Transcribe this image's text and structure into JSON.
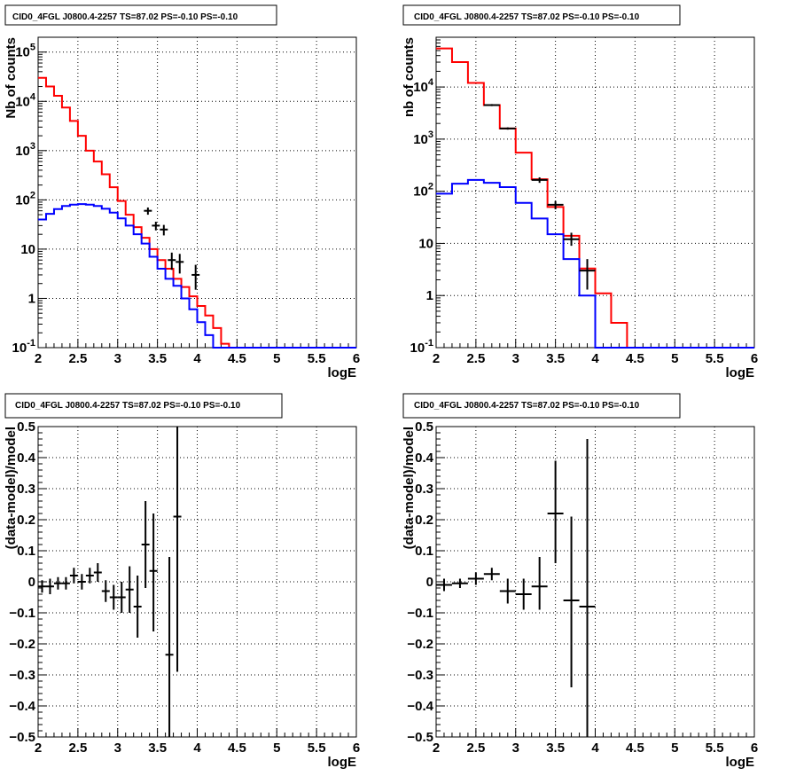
{
  "chart_data": [
    {
      "type": "line",
      "title": "CID0_4FGL J0800.4-2257 TS=87.02 PS=-0.10 PS=-0.10",
      "xlabel": "logE",
      "ylabel": "Nb of counts",
      "xlim": [
        2,
        6
      ],
      "ylim": [
        0.1,
        200000
      ],
      "yscale": "log",
      "grid": true,
      "x_ticks": [
        "2",
        "2.5",
        "3",
        "3.5",
        "4",
        "4.5",
        "5",
        "5.5",
        "6"
      ],
      "y_ticks": [
        {
          "value": 0.1,
          "base": "10",
          "exp": "-1"
        },
        {
          "value": 1,
          "text": "1"
        },
        {
          "value": 10,
          "text": "10"
        },
        {
          "value": 100,
          "base": "10",
          "exp": "2"
        },
        {
          "value": 1000,
          "base": "10",
          "exp": "3"
        },
        {
          "value": 10000,
          "base": "10",
          "exp": "4"
        },
        {
          "value": 100000,
          "base": "10",
          "exp": "5"
        }
      ],
      "series": [
        {
          "color": "#ff0000",
          "edges": [
            2.0,
            2.1,
            2.2,
            2.3,
            2.4,
            2.5,
            2.6,
            2.7,
            2.8,
            2.9,
            3.0,
            3.1,
            3.2,
            3.3,
            3.4,
            3.5,
            3.6,
            3.7,
            3.8,
            3.9,
            4.0,
            4.1,
            4.2,
            4.3,
            4.4,
            6.0
          ],
          "values": [
            30000,
            20000,
            13000,
            7500,
            4000,
            2000,
            1000,
            600,
            330,
            180,
            95,
            50,
            28,
            17,
            10,
            6,
            4,
            2.5,
            1.7,
            1.1,
            0.7,
            0.45,
            0.25,
            0.12,
            0.1
          ]
        },
        {
          "color": "#0000ff",
          "edges": [
            2.0,
            2.1,
            2.2,
            2.3,
            2.4,
            2.5,
            2.6,
            2.7,
            2.8,
            2.9,
            3.0,
            3.1,
            3.2,
            3.3,
            3.4,
            3.5,
            3.6,
            3.7,
            3.8,
            3.9,
            4.0,
            4.1,
            4.2,
            4.3,
            4.4,
            6.0
          ],
          "values": [
            40,
            52,
            65,
            75,
            80,
            82,
            80,
            75,
            66,
            55,
            42,
            30,
            20,
            13,
            7,
            4,
            2.5,
            1.8,
            1.0,
            0.6,
            0.33,
            0.18,
            0.1,
            0.1,
            0.1
          ]
        }
      ],
      "points": [
        {
          "x": 3.38,
          "y": 60,
          "xerr": 0.05,
          "ylo": 50,
          "yhi": 70
        },
        {
          "x": 3.48,
          "y": 30,
          "xerr": 0.05,
          "ylo": 24,
          "yhi": 36
        },
        {
          "x": 3.58,
          "y": 25,
          "xerr": 0.05,
          "ylo": 19,
          "yhi": 31
        },
        {
          "x": 3.68,
          "y": 6,
          "xerr": 0.05,
          "ylo": 3.8,
          "yhi": 8.5
        },
        {
          "x": 3.78,
          "y": 5.5,
          "xerr": 0.05,
          "ylo": 3.2,
          "yhi": 8
        },
        {
          "x": 3.98,
          "y": 3,
          "xerr": 0.05,
          "ylo": 1.5,
          "yhi": 4.8
        }
      ]
    },
    {
      "type": "line",
      "title": "CID0_4FGL J0800.4-2257 TS=87.02 PS=-0.10 PS=-0.10",
      "xlabel": "logE",
      "ylabel": "nb of counts",
      "xlim": [
        2,
        6
      ],
      "ylim": [
        0.1,
        90000
      ],
      "yscale": "log",
      "grid": true,
      "x_ticks": [
        "2",
        "2.5",
        "3",
        "3.5",
        "4",
        "4.5",
        "5",
        "5.5",
        "6"
      ],
      "y_ticks": [
        {
          "value": 0.1,
          "base": "10",
          "exp": "-1"
        },
        {
          "value": 1,
          "text": "1"
        },
        {
          "value": 10,
          "text": "10"
        },
        {
          "value": 100,
          "base": "10",
          "exp": "2"
        },
        {
          "value": 1000,
          "base": "10",
          "exp": "3"
        },
        {
          "value": 10000,
          "base": "10",
          "exp": "4"
        }
      ],
      "series": [
        {
          "color": "#ff0000",
          "edges": [
            2.0,
            2.2,
            2.4,
            2.6,
            2.8,
            3.0,
            3.2,
            3.4,
            3.6,
            3.8,
            4.0,
            4.2,
            4.4,
            6.0
          ],
          "values": [
            55000,
            30000,
            12000,
            4500,
            1600,
            550,
            170,
            50,
            14,
            3.3,
            1.1,
            0.3,
            0.1
          ]
        },
        {
          "color": "#0000ff",
          "edges": [
            2.0,
            2.2,
            2.4,
            2.6,
            2.8,
            3.0,
            3.2,
            3.4,
            3.6,
            3.8,
            4.0,
            4.2,
            4.4,
            6.0
          ],
          "values": [
            90,
            140,
            165,
            145,
            120,
            60,
            30,
            15,
            5,
            1,
            0.1,
            0.1,
            0.1
          ]
        }
      ],
      "points": [
        {
          "x": 2.7,
          "y": 4500,
          "xerr": 0.1,
          "ylo": 4300,
          "yhi": 4700
        },
        {
          "x": 2.9,
          "y": 1600,
          "xerr": 0.1,
          "ylo": 1520,
          "yhi": 1680
        },
        {
          "x": 3.3,
          "y": 165,
          "xerr": 0.1,
          "ylo": 145,
          "yhi": 185
        },
        {
          "x": 3.5,
          "y": 55,
          "xerr": 0.1,
          "ylo": 45,
          "yhi": 65
        },
        {
          "x": 3.7,
          "y": 12,
          "xerr": 0.1,
          "ylo": 9,
          "yhi": 16
        },
        {
          "x": 3.9,
          "y": 3,
          "xerr": 0.1,
          "ylo": 1.3,
          "yhi": 5
        }
      ]
    },
    {
      "type": "scatter",
      "title": "CID0_4FGL J0800.4-2257 TS=87.02 PS=-0.10 PS=-0.10",
      "xlabel": "logE",
      "ylabel": "(data-model)/model",
      "xlim": [
        2,
        6
      ],
      "ylim": [
        -0.5,
        0.5
      ],
      "yscale": "linear",
      "grid": true,
      "x_ticks": [
        "2",
        "2.5",
        "3",
        "3.5",
        "4",
        "4.5",
        "5",
        "5.5",
        "6"
      ],
      "y_ticks": [
        {
          "value": -0.5,
          "text": "−0.5"
        },
        {
          "value": -0.4,
          "text": "−0.4"
        },
        {
          "value": -0.3,
          "text": "−0.3"
        },
        {
          "value": -0.2,
          "text": "−0.2"
        },
        {
          "value": -0.1,
          "text": "−0.1"
        },
        {
          "value": 0,
          "text": "0"
        },
        {
          "value": 0.1,
          "text": "0.1"
        },
        {
          "value": 0.2,
          "text": "0.2"
        },
        {
          "value": 0.3,
          "text": "0.3"
        },
        {
          "value": 0.4,
          "text": "0.4"
        },
        {
          "value": 0.5,
          "text": "0.5"
        }
      ],
      "points": [
        {
          "x": 2.05,
          "y": -0.015,
          "xerr": 0.05,
          "ylo": -0.035,
          "yhi": 0.005
        },
        {
          "x": 2.15,
          "y": -0.015,
          "xerr": 0.05,
          "ylo": -0.04,
          "yhi": 0.01
        },
        {
          "x": 2.25,
          "y": -0.005,
          "xerr": 0.05,
          "ylo": -0.025,
          "yhi": 0.015
        },
        {
          "x": 2.35,
          "y": -0.005,
          "xerr": 0.05,
          "ylo": -0.025,
          "yhi": 0.015
        },
        {
          "x": 2.45,
          "y": 0.02,
          "xerr": 0.05,
          "ylo": -0.005,
          "yhi": 0.045
        },
        {
          "x": 2.55,
          "y": 0.0,
          "xerr": 0.05,
          "ylo": -0.025,
          "yhi": 0.025
        },
        {
          "x": 2.65,
          "y": 0.02,
          "xerr": 0.05,
          "ylo": -0.005,
          "yhi": 0.045
        },
        {
          "x": 2.75,
          "y": 0.03,
          "xerr": 0.05,
          "ylo": 0.0,
          "yhi": 0.06
        },
        {
          "x": 2.85,
          "y": -0.03,
          "xerr": 0.05,
          "ylo": -0.065,
          "yhi": 0.005
        },
        {
          "x": 2.95,
          "y": -0.05,
          "xerr": 0.05,
          "ylo": -0.09,
          "yhi": -0.01
        },
        {
          "x": 3.05,
          "y": -0.05,
          "xerr": 0.05,
          "ylo": -0.1,
          "yhi": 0.0
        },
        {
          "x": 3.15,
          "y": -0.025,
          "xerr": 0.05,
          "ylo": -0.1,
          "yhi": 0.05
        },
        {
          "x": 3.25,
          "y": -0.08,
          "xerr": 0.05,
          "ylo": -0.18,
          "yhi": 0.02
        },
        {
          "x": 3.35,
          "y": 0.12,
          "xerr": 0.05,
          "ylo": -0.02,
          "yhi": 0.26
        },
        {
          "x": 3.45,
          "y": 0.035,
          "xerr": 0.05,
          "ylo": -0.16,
          "yhi": 0.22
        },
        {
          "x": 3.65,
          "y": -0.235,
          "xerr": 0.05,
          "ylo": -0.55,
          "yhi": 0.08
        },
        {
          "x": 3.75,
          "y": 0.21,
          "xerr": 0.05,
          "ylo": -0.29,
          "yhi": 0.52
        }
      ]
    },
    {
      "type": "scatter",
      "title": "CID0_4FGL J0800.4-2257 TS=87.02 PS=-0.10 PS=-0.10",
      "xlabel": "logE",
      "ylabel": "(data-model)/model",
      "xlim": [
        2,
        6
      ],
      "ylim": [
        -0.5,
        0.5
      ],
      "yscale": "linear",
      "grid": true,
      "x_ticks": [
        "2",
        "2.5",
        "3",
        "3.5",
        "4",
        "4.5",
        "5",
        "5.5",
        "6"
      ],
      "y_ticks": [
        {
          "value": -0.5,
          "text": "−0.5"
        },
        {
          "value": -0.4,
          "text": "−0.4"
        },
        {
          "value": -0.3,
          "text": "−0.3"
        },
        {
          "value": -0.2,
          "text": "−0.2"
        },
        {
          "value": -0.1,
          "text": "−0.1"
        },
        {
          "value": 0,
          "text": "0"
        },
        {
          "value": 0.1,
          "text": "0.1"
        },
        {
          "value": 0.2,
          "text": "0.2"
        },
        {
          "value": 0.3,
          "text": "0.3"
        },
        {
          "value": 0.4,
          "text": "0.4"
        },
        {
          "value": 0.5,
          "text": "0.5"
        }
      ],
      "points": [
        {
          "x": 2.1,
          "y": -0.01,
          "xerr": 0.1,
          "ylo": -0.03,
          "yhi": 0.01
        },
        {
          "x": 2.3,
          "y": -0.005,
          "xerr": 0.1,
          "ylo": -0.02,
          "yhi": 0.01
        },
        {
          "x": 2.5,
          "y": 0.01,
          "xerr": 0.1,
          "ylo": -0.01,
          "yhi": 0.03
        },
        {
          "x": 2.7,
          "y": 0.025,
          "xerr": 0.1,
          "ylo": 0.005,
          "yhi": 0.045
        },
        {
          "x": 2.9,
          "y": -0.03,
          "xerr": 0.1,
          "ylo": -0.07,
          "yhi": 0.01
        },
        {
          "x": 3.1,
          "y": -0.04,
          "xerr": 0.1,
          "ylo": -0.09,
          "yhi": 0.01
        },
        {
          "x": 3.3,
          "y": -0.015,
          "xerr": 0.1,
          "ylo": -0.09,
          "yhi": 0.08
        },
        {
          "x": 3.5,
          "y": 0.22,
          "xerr": 0.1,
          "ylo": 0.06,
          "yhi": 0.39
        },
        {
          "x": 3.7,
          "y": -0.06,
          "xerr": 0.1,
          "ylo": -0.34,
          "yhi": 0.21
        },
        {
          "x": 3.9,
          "y": -0.08,
          "xerr": 0.1,
          "ylo": -0.55,
          "yhi": 0.46
        }
      ]
    }
  ]
}
